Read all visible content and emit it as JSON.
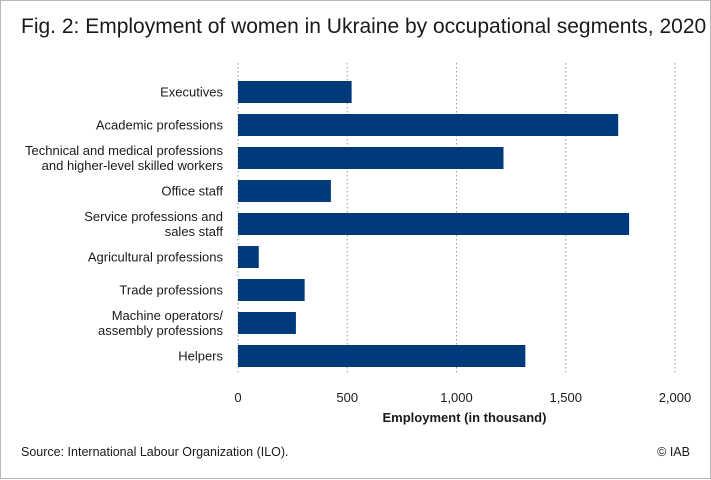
{
  "figure": {
    "title": "Fig. 2: Employment of women in Ukraine by occupational segments, 2020",
    "source": "Source: International Labour Organization (ILO).",
    "copyright": "© IAB"
  },
  "colors": {
    "bar": "#003a7a",
    "grid": "#9a9a9a",
    "text": "#1a1a1a"
  },
  "chart_data": {
    "type": "bar",
    "orientation": "horizontal",
    "title": "Fig. 2: Employment of women in Ukraine by occupational segments, 2020",
    "xlabel": "Employment (in thousand)",
    "ylabel": "",
    "xlim": [
      0,
      2000
    ],
    "xticks": [
      0,
      500,
      1000,
      1500,
      2000
    ],
    "xtick_labels": [
      "0",
      "500",
      "1,000",
      "1,500",
      "2,000"
    ],
    "grid": "vertical dotted",
    "categories": [
      [
        "Executives"
      ],
      [
        "Academic professions"
      ],
      [
        "Technical and medical professions",
        "and higher-level skilled workers"
      ],
      [
        "Office staff"
      ],
      [
        "Service professions and",
        "sales staff"
      ],
      [
        "Agricultural professions"
      ],
      [
        "Trade professions"
      ],
      [
        "Machine operators/",
        "assembly professions"
      ],
      [
        "Helpers"
      ]
    ],
    "values": [
      520,
      1740,
      1215,
      425,
      1790,
      95,
      305,
      265,
      1315
    ]
  }
}
